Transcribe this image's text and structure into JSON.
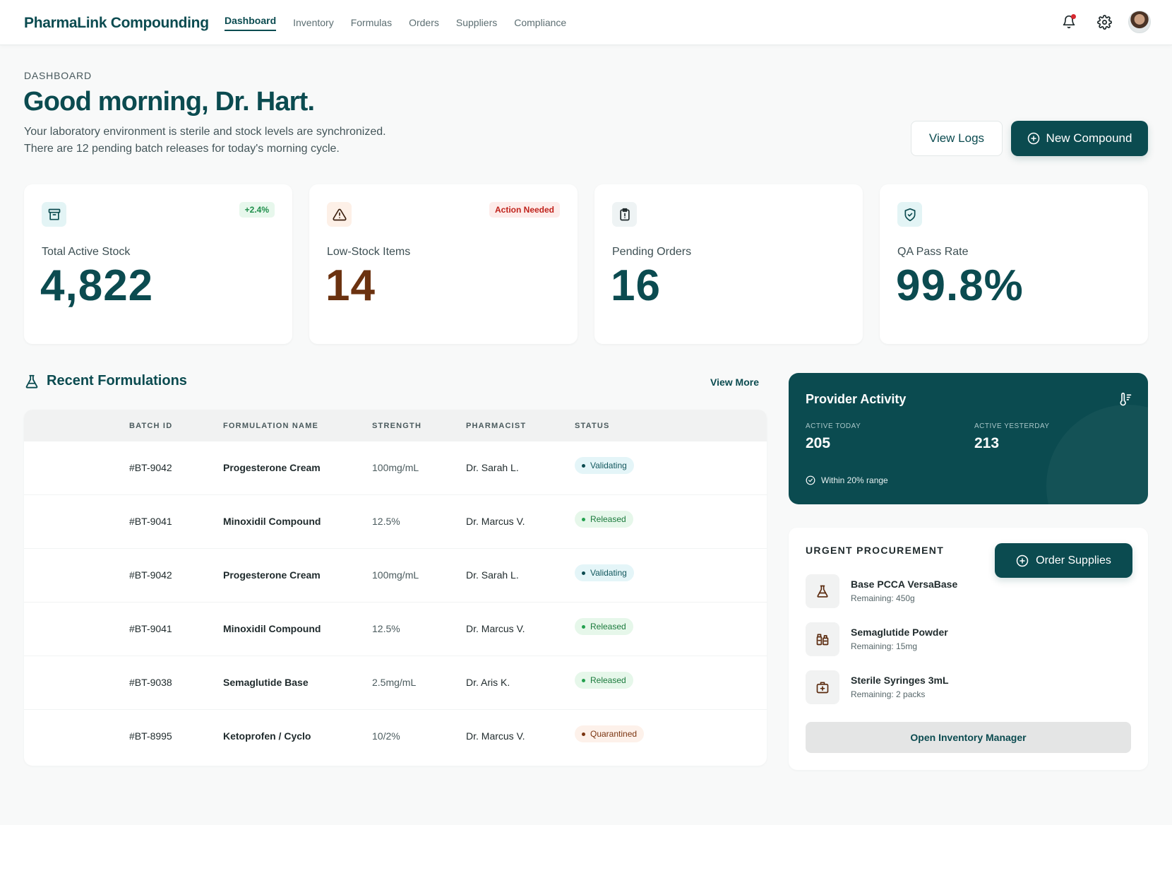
{
  "app": {
    "brand": "PharmaLink Compounding"
  },
  "nav": {
    "items": [
      {
        "label": "Dashboard",
        "active": true
      },
      {
        "label": "Inventory"
      },
      {
        "label": "Formulas"
      },
      {
        "label": "Orders"
      },
      {
        "label": "Suppliers"
      },
      {
        "label": "Compliance"
      }
    ]
  },
  "header": {
    "icons": [
      "bell-icon",
      "gear-icon",
      "avatar"
    ],
    "notification_dot_color": "#d6282f"
  },
  "hero": {
    "eyebrow": "DASHBOARD",
    "greeting": "Good morning, Dr. Hart.",
    "line1": "Your laboratory environment is sterile and stock levels are synchronized.",
    "line2": "There are 12 pending batch releases for today's morning cycle.",
    "view_logs": "View Logs",
    "new_compound": "New Compound"
  },
  "stats": [
    {
      "label": "Total Active Stock",
      "value": "4,822",
      "badge": "+2.4%",
      "icon": "archive-icon"
    },
    {
      "label": "Low-Stock Items",
      "value": "14",
      "badge": "Action Needed",
      "icon": "warning-icon"
    },
    {
      "label": "Pending Orders",
      "value": "16",
      "icon": "clipboard-alert-icon"
    },
    {
      "label": "QA Pass Rate",
      "value": "99.8%",
      "icon": "shield-check-icon"
    }
  ],
  "formulations": {
    "title": "Recent Formulations",
    "view_more": "View More",
    "columns": [
      "BATCH ID",
      "FORMULATION NAME",
      "STRENGTH",
      "PHARMACIST",
      "STATUS"
    ],
    "rows": [
      {
        "batch": "#BT-9042",
        "name": "Progesterone Cream",
        "strength": "100mg/mL",
        "pharmacist": "Dr. Sarah L.",
        "status": "Validating"
      },
      {
        "batch": "#BT-9041",
        "name": "Minoxidil Compound",
        "strength": "12.5%",
        "pharmacist": "Dr. Marcus V.",
        "status": "Released"
      },
      {
        "batch": "#BT-9042",
        "name": "Progesterone Cream",
        "strength": "100mg/mL",
        "pharmacist": "Dr. Sarah L.",
        "status": "Validating"
      },
      {
        "batch": "#BT-9041",
        "name": "Minoxidil Compound",
        "strength": "12.5%",
        "pharmacist": "Dr. Marcus V.",
        "status": "Released"
      },
      {
        "batch": "#BT-9038",
        "name": "Semaglutide Base",
        "strength": "2.5mg/mL",
        "pharmacist": "Dr. Aris K.",
        "status": "Released"
      },
      {
        "batch": "#BT-8995",
        "name": "Ketoprofen / Cyclo",
        "strength": "10/2%",
        "pharmacist": "Dr. Marcus V.",
        "status": "Quarantined"
      }
    ]
  },
  "provider": {
    "title": "Provider Activity",
    "today_label": "ACTIVE TODAY",
    "today_value": "205",
    "yesterday_label": "ACTIVE YESTERDAY",
    "yesterday_value": "213",
    "note": "Within 20% range"
  },
  "procurement": {
    "title": "URGENT PROCUREMENT",
    "order_button": "Order Supplies",
    "items": [
      {
        "name": "Base PCCA VersaBase",
        "remaining": "Remaining: 450g",
        "icon": "flask-icon"
      },
      {
        "name": "Semaglutide Powder",
        "remaining": "Remaining: 15mg",
        "icon": "vials-icon"
      },
      {
        "name": "Sterile Syringes 3mL",
        "remaining": "Remaining: 2 packs",
        "icon": "medical-kit-icon"
      }
    ],
    "inventory_button": "Open Inventory Manager"
  },
  "colors": {
    "brand": "#0b4b50",
    "brown": "#6b3210",
    "released": "#23a04e",
    "alert": "#c0231c"
  }
}
